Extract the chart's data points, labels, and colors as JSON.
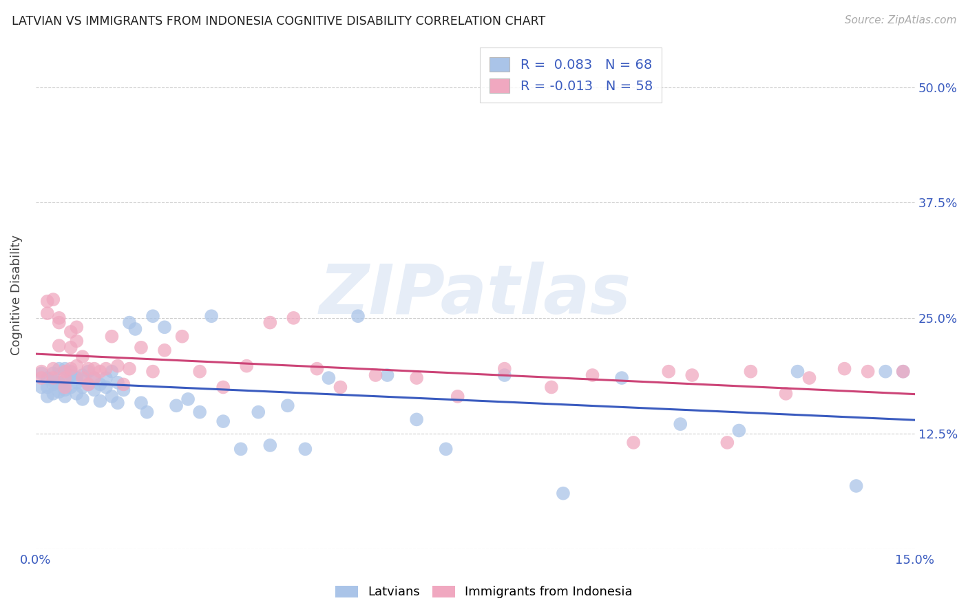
{
  "title": "LATVIAN VS IMMIGRANTS FROM INDONESIA COGNITIVE DISABILITY CORRELATION CHART",
  "source": "Source: ZipAtlas.com",
  "ylabel_label": "Cognitive Disability",
  "xlim": [
    0.0,
    0.15
  ],
  "ylim": [
    0.0,
    0.55
  ],
  "yticks": [
    0.0,
    0.125,
    0.25,
    0.375,
    0.5
  ],
  "yticklabels": [
    "",
    "12.5%",
    "25.0%",
    "37.5%",
    "50.0%"
  ],
  "xtick_positions": [
    0.0,
    0.05,
    0.1,
    0.15
  ],
  "xtick_labels": [
    "0.0%",
    "",
    "",
    "15.0%"
  ],
  "grid_color": "#cccccc",
  "background_color": "#ffffff",
  "watermark": "ZIPatlas",
  "latvians_color": "#aac4e8",
  "immigrants_color": "#f0a8c0",
  "latvians_line_color": "#3a5bbf",
  "immigrants_line_color": "#cc4477",
  "R_latvians": 0.083,
  "N_latvians": 68,
  "R_immigrants": -0.013,
  "N_immigrants": 58,
  "latvians_x": [
    0.001,
    0.001,
    0.002,
    0.002,
    0.002,
    0.003,
    0.003,
    0.003,
    0.003,
    0.004,
    0.004,
    0.004,
    0.005,
    0.005,
    0.005,
    0.005,
    0.006,
    0.006,
    0.006,
    0.007,
    0.007,
    0.007,
    0.008,
    0.008,
    0.008,
    0.009,
    0.009,
    0.01,
    0.01,
    0.011,
    0.011,
    0.012,
    0.012,
    0.013,
    0.013,
    0.014,
    0.014,
    0.015,
    0.016,
    0.017,
    0.018,
    0.019,
    0.02,
    0.022,
    0.024,
    0.026,
    0.028,
    0.03,
    0.032,
    0.035,
    0.038,
    0.04,
    0.043,
    0.046,
    0.05,
    0.055,
    0.06,
    0.065,
    0.07,
    0.08,
    0.09,
    0.1,
    0.11,
    0.12,
    0.13,
    0.14,
    0.145,
    0.148
  ],
  "latvians_y": [
    0.19,
    0.175,
    0.185,
    0.165,
    0.175,
    0.19,
    0.178,
    0.168,
    0.182,
    0.195,
    0.17,
    0.18,
    0.195,
    0.172,
    0.182,
    0.165,
    0.188,
    0.175,
    0.192,
    0.18,
    0.168,
    0.185,
    0.175,
    0.188,
    0.162,
    0.178,
    0.192,
    0.172,
    0.185,
    0.178,
    0.16,
    0.185,
    0.175,
    0.192,
    0.165,
    0.18,
    0.158,
    0.172,
    0.245,
    0.238,
    0.158,
    0.148,
    0.252,
    0.24,
    0.155,
    0.162,
    0.148,
    0.252,
    0.138,
    0.108,
    0.148,
    0.112,
    0.155,
    0.108,
    0.185,
    0.252,
    0.188,
    0.14,
    0.108,
    0.188,
    0.06,
    0.185,
    0.135,
    0.128,
    0.192,
    0.068,
    0.192,
    0.192
  ],
  "immigrants_x": [
    0.001,
    0.001,
    0.002,
    0.002,
    0.003,
    0.003,
    0.003,
    0.004,
    0.004,
    0.004,
    0.005,
    0.005,
    0.005,
    0.006,
    0.006,
    0.006,
    0.007,
    0.007,
    0.007,
    0.008,
    0.008,
    0.009,
    0.009,
    0.01,
    0.01,
    0.011,
    0.012,
    0.013,
    0.014,
    0.015,
    0.016,
    0.018,
    0.02,
    0.022,
    0.025,
    0.028,
    0.032,
    0.036,
    0.04,
    0.044,
    0.048,
    0.052,
    0.058,
    0.065,
    0.072,
    0.08,
    0.088,
    0.095,
    0.102,
    0.108,
    0.112,
    0.118,
    0.122,
    0.128,
    0.132,
    0.138,
    0.142,
    0.148
  ],
  "immigrants_y": [
    0.192,
    0.185,
    0.268,
    0.255,
    0.195,
    0.27,
    0.185,
    0.245,
    0.25,
    0.22,
    0.192,
    0.185,
    0.175,
    0.235,
    0.218,
    0.195,
    0.24,
    0.225,
    0.198,
    0.208,
    0.185,
    0.195,
    0.178,
    0.195,
    0.185,
    0.192,
    0.195,
    0.23,
    0.198,
    0.178,
    0.195,
    0.218,
    0.192,
    0.215,
    0.23,
    0.192,
    0.175,
    0.198,
    0.245,
    0.25,
    0.195,
    0.175,
    0.188,
    0.185,
    0.165,
    0.195,
    0.175,
    0.188,
    0.115,
    0.192,
    0.188,
    0.115,
    0.192,
    0.168,
    0.185,
    0.195,
    0.192,
    0.192
  ]
}
